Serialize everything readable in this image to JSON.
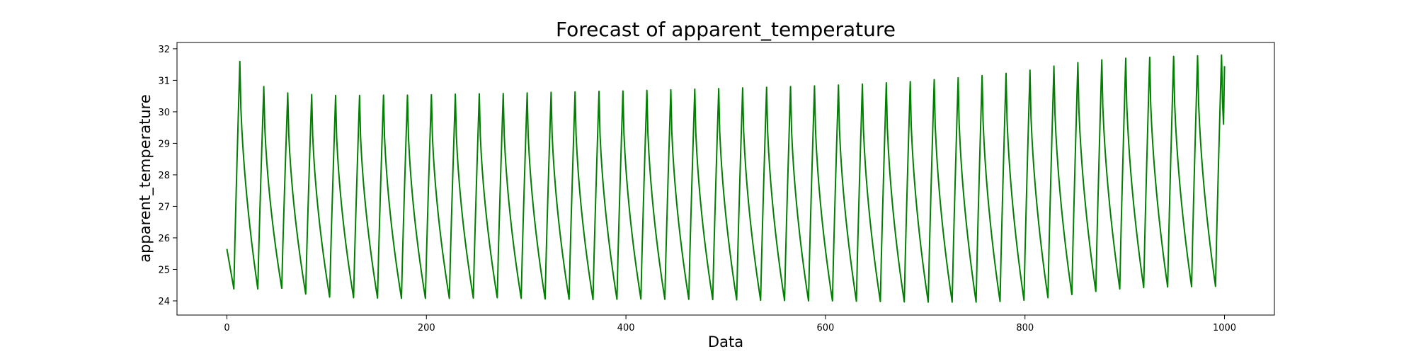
{
  "chart_data": {
    "type": "line",
    "title": "Forecast of apparent_temperature",
    "xlabel": "Data",
    "ylabel": "apparent_temperature",
    "xlim": [
      -50,
      1050
    ],
    "ylim": [
      23.55,
      32.2
    ],
    "xticks": [
      0,
      200,
      400,
      600,
      800,
      1000
    ],
    "yticks": [
      24,
      25,
      26,
      27,
      28,
      29,
      30,
      31,
      32
    ],
    "grid": false,
    "legend": "none",
    "colors": {
      "series": "#008000"
    },
    "series": [
      {
        "peaks": [
          31.6,
          30.8,
          30.6,
          30.55,
          30.52,
          30.52,
          30.53,
          30.53,
          30.54,
          30.56,
          30.57,
          30.58,
          30.6,
          30.62,
          30.63,
          30.65,
          30.66,
          30.68,
          30.7,
          30.72,
          30.74,
          30.76,
          30.78,
          30.8,
          30.82,
          30.85,
          30.88,
          30.92,
          30.96,
          31.02,
          31.08,
          31.15,
          31.22,
          31.32,
          31.45,
          31.56,
          31.65,
          31.7,
          31.73,
          31.76,
          31.78,
          31.8
        ],
        "troughs": [
          24.38,
          24.4,
          24.22,
          24.12,
          24.1,
          24.09,
          24.08,
          24.08,
          24.08,
          24.09,
          24.1,
          24.08,
          24.06,
          24.05,
          24.04,
          24.05,
          24.06,
          24.05,
          24.05,
          24.04,
          24.03,
          24.02,
          24.01,
          24.0,
          24.0,
          23.99,
          23.98,
          23.97,
          23.96,
          23.96,
          23.96,
          23.98,
          24.02,
          24.1,
          24.2,
          24.3,
          24.38,
          24.42,
          24.44,
          24.45,
          24.46
        ],
        "start_value": 25.65,
        "end_value": 31.45
      }
    ]
  }
}
